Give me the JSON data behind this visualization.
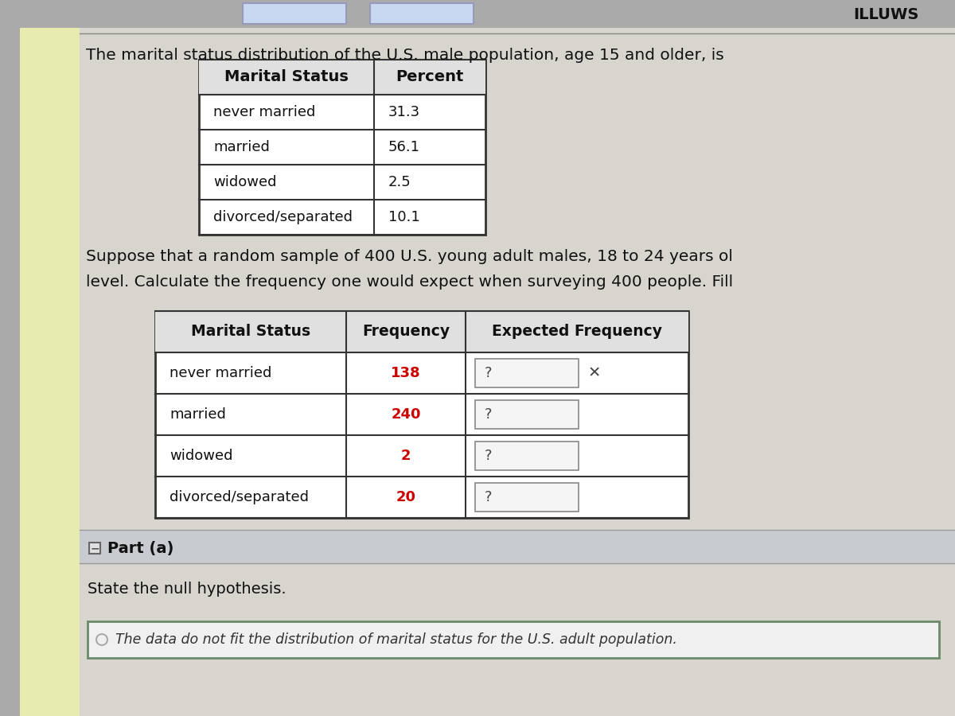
{
  "page_bg": "#e8e8e8",
  "content_bg": "#d8d5ce",
  "left_bar_color": "#e8ebb0",
  "intro_text": "The marital status distribution of the U.S. male population, age 15 and older, is",
  "table1_headers": [
    "Marital Status",
    "Percent"
  ],
  "table1_rows": [
    [
      "never married",
      "31.3"
    ],
    [
      "married",
      "56.1"
    ],
    [
      "widowed",
      "2.5"
    ],
    [
      "divorced/separated",
      "10.1"
    ]
  ],
  "middle_text_line1": "Suppose that a random sample of 400 U.S. young adult males, 18 to 24 years ol",
  "middle_text_line2": "level. Calculate the frequency one would expect when surveying 400 people. Fill",
  "table2_headers": [
    "Marital Status",
    "Frequency",
    "Expected Frequency"
  ],
  "table2_rows": [
    [
      "never married",
      "138",
      "?",
      true
    ],
    [
      "married",
      "240",
      "?",
      false
    ],
    [
      "widowed",
      "2",
      "?",
      false
    ],
    [
      "divorced/separated",
      "20",
      "?",
      false
    ]
  ],
  "freq_color": "#cc0000",
  "part_a_label": "Part (a)",
  "state_null": "State the null hypothesis.",
  "null_hypothesis": "The data do not fit the distribution of marital status for the U.S. adult population.",
  "top_buttons_color": "#c8d8f0",
  "top_right_text": "ILLUWS",
  "part_a_bg": "#c8ccd0",
  "null_box_border": "#6a8a6a"
}
